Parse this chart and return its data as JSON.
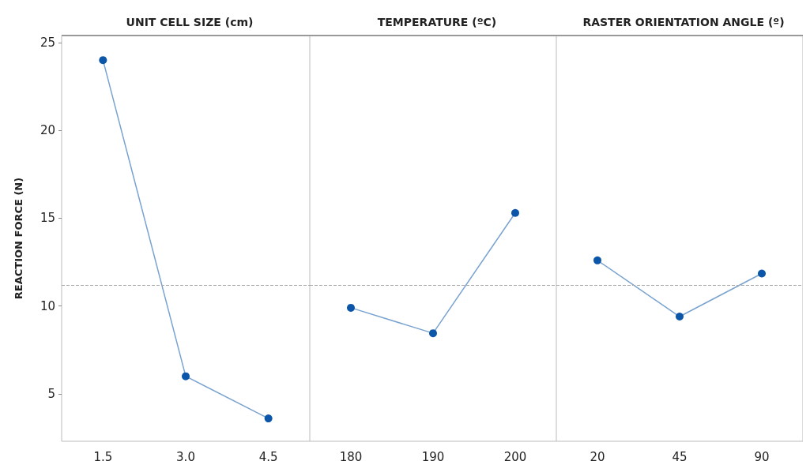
{
  "chart_data": [
    {
      "type": "line",
      "title": "UNIT CELL SIZE (cm)",
      "ylabel": "REACTION FORCE (N)",
      "categories": [
        "1.5",
        "3.0",
        "4.5"
      ],
      "series": [
        {
          "color": "#0b56a8",
          "values": [
            24.0,
            6.0,
            3.6
          ]
        }
      ],
      "ylim": [
        2.3,
        25.4
      ],
      "yticks": [
        5,
        10,
        15,
        20,
        25
      ],
      "marker": "circle",
      "grid": false,
      "ref_lines": [
        {
          "axis": "y",
          "value": 11.2,
          "color": "#aaaaaa",
          "line_style": "dashed"
        }
      ]
    },
    {
      "type": "line",
      "title": "TEMPERATURE (ºC)",
      "categories": [
        "180",
        "190",
        "200"
      ],
      "series": [
        {
          "color": "#0b56a8",
          "values": [
            9.9,
            8.45,
            15.3
          ]
        }
      ],
      "ylim": [
        2.3,
        25.4
      ],
      "yticks": [
        5,
        10,
        15,
        20,
        25
      ],
      "tick_labels": "x",
      "marker": "circle",
      "grid": false,
      "ref_lines": [
        {
          "axis": "y",
          "value": 11.2,
          "color": "#aaaaaa",
          "line_style": "dashed"
        }
      ]
    },
    {
      "type": "line",
      "title": "RASTER ORIENTATION ANGLE (º)",
      "categories": [
        "20",
        "45",
        "90"
      ],
      "series": [
        {
          "color": "#0b56a8",
          "values": [
            12.6,
            9.4,
            11.85
          ]
        }
      ],
      "ylim": [
        2.3,
        25.4
      ],
      "yticks": [
        5,
        10,
        15,
        20,
        25
      ],
      "tick_labels": "x",
      "marker": "circle",
      "grid": false,
      "ref_lines": [
        {
          "axis": "y",
          "value": 11.2,
          "color": "#aaaaaa",
          "line_style": "dashed"
        }
      ]
    }
  ]
}
